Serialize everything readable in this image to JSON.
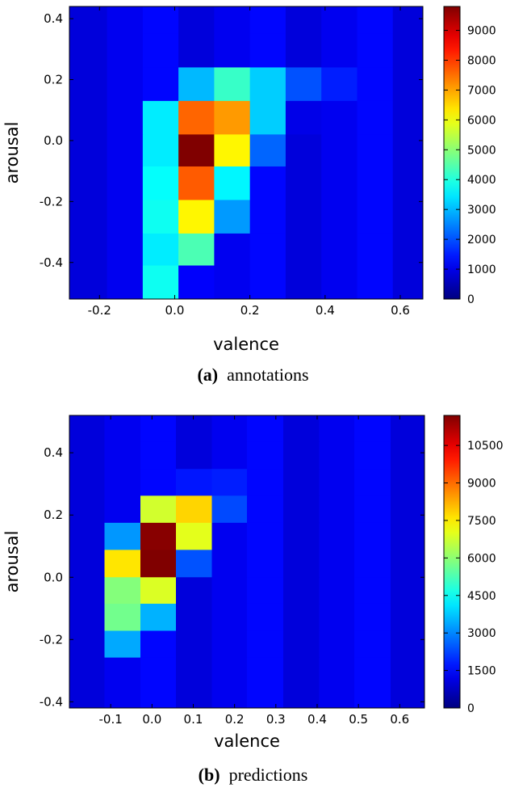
{
  "chart_data": [
    {
      "type": "heatmap",
      "caption_tag": "(a)",
      "caption_text": "annotations",
      "xlabel": "valence",
      "ylabel": "arousal",
      "xlim": [
        -0.28,
        0.66
      ],
      "ylim": [
        -0.52,
        0.44
      ],
      "xticks": [
        -0.2,
        0.0,
        0.2,
        0.4,
        0.6
      ],
      "xtick_labels": [
        "-0.2",
        "0.0",
        "0.2",
        "0.4",
        "0.6"
      ],
      "yticks": [
        0.4,
        0.2,
        0.0,
        -0.2,
        -0.4
      ],
      "ytick_labels": [
        "0.4",
        "0.2",
        "0.0",
        "-0.2",
        "-0.4"
      ],
      "x_bin_edges": [
        -0.28,
        -0.18,
        -0.085,
        0.01,
        0.105,
        0.2,
        0.295,
        0.39,
        0.485,
        0.58,
        0.66
      ],
      "y_bin_edges": [
        0.44,
        0.35,
        0.24,
        0.13,
        0.02,
        -0.085,
        -0.195,
        -0.305,
        -0.41,
        -0.52
      ],
      "grid": [
        [
          0,
          0,
          0,
          0,
          0,
          0,
          0,
          0,
          0,
          0
        ],
        [
          0,
          0,
          0,
          100,
          150,
          200,
          300,
          300,
          100,
          0
        ],
        [
          0,
          0,
          800,
          3000,
          4200,
          3200,
          2000,
          1500,
          300,
          0
        ],
        [
          0,
          300,
          3500,
          7600,
          7100,
          3200,
          1000,
          600,
          100,
          0
        ],
        [
          0,
          400,
          3500,
          9800,
          6200,
          2200,
          400,
          100,
          0,
          0
        ],
        [
          0,
          700,
          3700,
          7700,
          3600,
          900,
          100,
          0,
          0,
          0
        ],
        [
          0,
          500,
          3800,
          6200,
          2700,
          500,
          0,
          0,
          0,
          0
        ],
        [
          0,
          300,
          3500,
          4400,
          900,
          100,
          0,
          0,
          0,
          0
        ],
        [
          0,
          200,
          3800,
          1200,
          100,
          0,
          0,
          0,
          0,
          0
        ],
        [
          0,
          100,
          400,
          300,
          0,
          0,
          0,
          0,
          0,
          0
        ]
      ],
      "colorbar": {
        "min": 0,
        "max": 9800,
        "ticks": [
          0,
          1000,
          2000,
          3000,
          4000,
          5000,
          6000,
          7000,
          8000,
          9000
        ],
        "tick_labels": [
          "0",
          "1000",
          "2000",
          "3000",
          "4000",
          "5000",
          "6000",
          "7000",
          "8000",
          "9000"
        ]
      },
      "colormap": "jet"
    },
    {
      "type": "heatmap",
      "caption_tag": "(b)",
      "caption_text": "predictions",
      "xlabel": "valence",
      "ylabel": "arousal",
      "xlim": [
        -0.2,
        0.66
      ],
      "ylim": [
        -0.42,
        0.52
      ],
      "xticks": [
        -0.1,
        0.0,
        0.1,
        0.2,
        0.3,
        0.4,
        0.5,
        0.6
      ],
      "xtick_labels": [
        "-0.1",
        "0.0",
        "0.1",
        "0.2",
        "0.3",
        "0.4",
        "0.5",
        "0.6"
      ],
      "yticks": [
        0.4,
        0.2,
        0.0,
        -0.2,
        -0.4
      ],
      "ytick_labels": [
        "0.4",
        "0.2",
        "0.0",
        "-0.2",
        "-0.4"
      ],
      "x_bin_edges": [
        -0.2,
        -0.115,
        -0.028,
        0.058,
        0.145,
        0.23,
        0.318,
        0.405,
        0.49,
        0.578,
        0.66
      ],
      "y_bin_edges": [
        0.52,
        0.435,
        0.348,
        0.262,
        0.175,
        0.088,
        0.0,
        -0.085,
        -0.172,
        -0.258,
        -0.345,
        -0.42
      ],
      "grid": [
        [
          0,
          0,
          0,
          0,
          0,
          0,
          0,
          0,
          0,
          0
        ],
        [
          0,
          0,
          0,
          0,
          0,
          100,
          200,
          300,
          100,
          0
        ],
        [
          0,
          0,
          400,
          1700,
          1800,
          1200,
          600,
          400,
          100,
          0
        ],
        [
          0,
          300,
          6800,
          7800,
          2300,
          800,
          400,
          100,
          0,
          0
        ],
        [
          100,
          3200,
          11600,
          7000,
          800,
          400,
          200,
          0,
          0,
          0
        ],
        [
          100,
          7600,
          11700,
          2400,
          300,
          200,
          0,
          0,
          0,
          0
        ],
        [
          400,
          5900,
          6900,
          800,
          100,
          100,
          0,
          0,
          0,
          0
        ],
        [
          1000,
          5700,
          3500,
          200,
          0,
          0,
          0,
          0,
          0,
          0
        ],
        [
          200,
          3400,
          600,
          0,
          0,
          0,
          0,
          0,
          0,
          0
        ],
        [
          0,
          200,
          0,
          0,
          0,
          0,
          0,
          0,
          0,
          0
        ],
        [
          0,
          0,
          0,
          0,
          0,
          0,
          0,
          0,
          0,
          0
        ]
      ],
      "colorbar": {
        "min": 0,
        "max": 11700,
        "ticks": [
          0,
          1500,
          3000,
          4500,
          6000,
          7500,
          9000,
          10500
        ],
        "tick_labels": [
          "0",
          "1500",
          "3000",
          "4500",
          "6000",
          "7500",
          "9000",
          "10500"
        ]
      },
      "colormap": "jet"
    }
  ]
}
